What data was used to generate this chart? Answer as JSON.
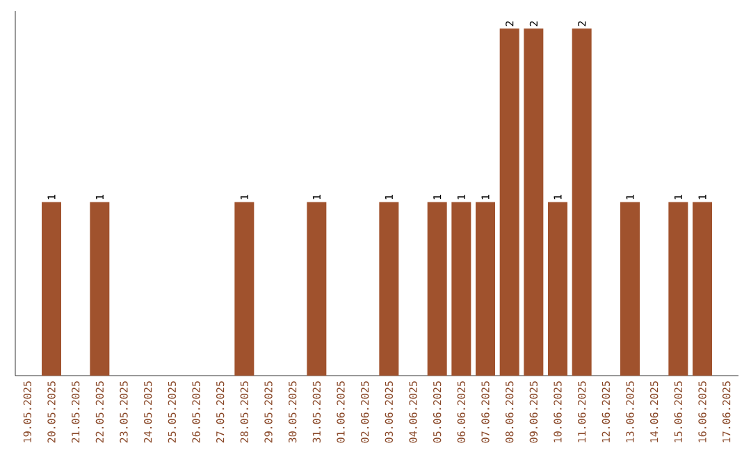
{
  "chart_data": {
    "type": "bar",
    "color": "#a0522d",
    "categories": [
      "19.05.2025",
      "20.05.2025",
      "21.05.2025",
      "22.05.2025",
      "23.05.2025",
      "24.05.2025",
      "25.05.2025",
      "26.05.2025",
      "27.05.2025",
      "28.05.2025",
      "29.05.2025",
      "30.05.2025",
      "31.05.2025",
      "01.06.2025",
      "02.06.2025",
      "03.06.2025",
      "04.06.2025",
      "05.06.2025",
      "06.06.2025",
      "07.06.2025",
      "08.06.2025",
      "09.06.2025",
      "10.06.2025",
      "11.06.2025",
      "12.06.2025",
      "13.06.2025",
      "14.06.2025",
      "15.06.2025",
      "16.06.2025",
      "17.06.2025"
    ],
    "values": [
      0,
      1,
      0,
      1,
      0,
      0,
      0,
      0,
      0,
      1,
      0,
      0,
      1,
      0,
      0,
      1,
      0,
      1,
      1,
      1,
      2,
      2,
      1,
      2,
      0,
      1,
      0,
      1,
      1,
      0
    ],
    "value_labels": [
      null,
      "1",
      null,
      "1",
      null,
      null,
      null,
      null,
      null,
      "1",
      null,
      null,
      "1",
      null,
      null,
      "1",
      null,
      "1",
      "1",
      "1",
      "2",
      "2",
      "1",
      "2",
      null,
      "1",
      null,
      "1",
      "1",
      null
    ],
    "tick_labels": "x",
    "grid": false
  }
}
